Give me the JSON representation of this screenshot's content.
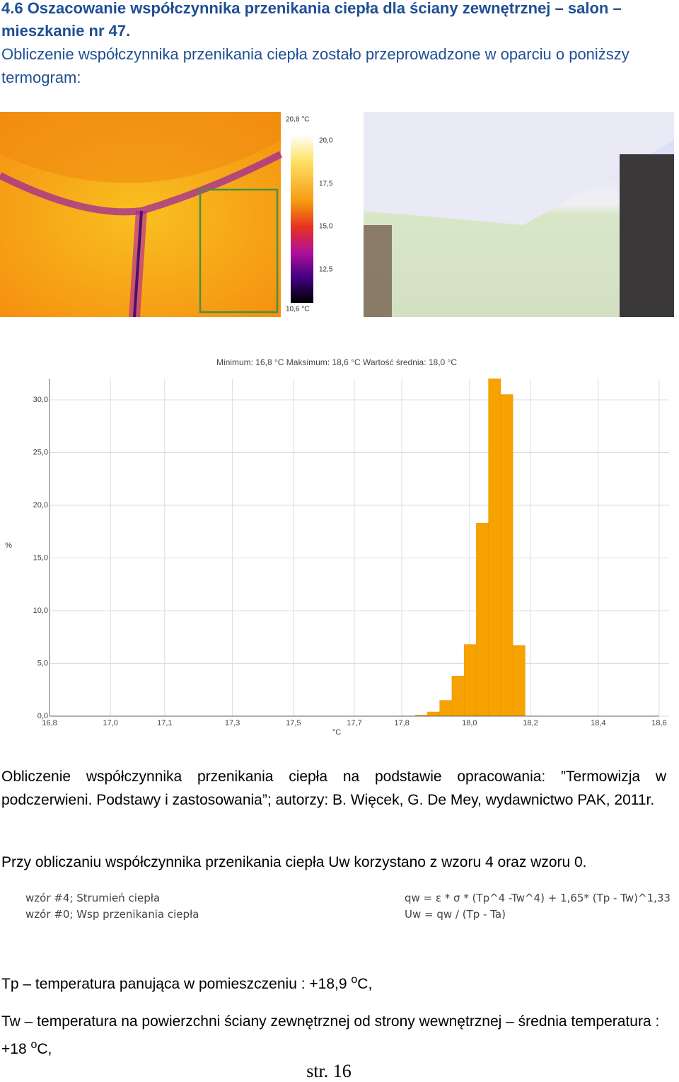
{
  "header": {
    "title": "4.6 Oszacowanie współczynnika przenikania ciepła dla ściany zewnętrznej – salon – mieszkanie nr 47."
  },
  "intro": "Obliczenie współczynnika przenikania ciepła zostało przeprowadzone w oparciu o poniższy termogram:",
  "thermogram": {
    "scale_labels": [
      "20,8 °C",
      "20,0",
      "17,5",
      "15,0",
      "12,5",
      "10,6 °C"
    ]
  },
  "chart_data": {
    "type": "histogram",
    "title": "Minimum: 16,8 °C Maksimum: 18,6 °C Wartość średnia: 18,0 °C",
    "x_label": "°C",
    "y_label": "%",
    "bins": [
      17.88,
      17.916,
      17.952,
      17.988,
      18.024,
      18.06,
      18.096,
      18.132,
      18.168,
      18.204
    ],
    "values": [
      0.1,
      0.4,
      1.5,
      3.8,
      6.8,
      18.3,
      32.0,
      30.5,
      6.7
    ],
    "color": "#f6a200",
    "xlim": [
      16.8,
      18.6
    ],
    "ylim": [
      0,
      32
    ],
    "xticks": [
      {
        "value": 16.8,
        "label": "16,8"
      },
      {
        "value": 16.98,
        "label": "17,0"
      },
      {
        "value": 17.14,
        "label": "17,1"
      },
      {
        "value": 17.34,
        "label": "17,3"
      },
      {
        "value": 17.52,
        "label": "17,5"
      },
      {
        "value": 17.7,
        "label": "17,7"
      },
      {
        "value": 17.84,
        "label": "17,8"
      },
      {
        "value": 18.04,
        "label": "18,0"
      },
      {
        "value": 18.22,
        "label": "18,2"
      },
      {
        "value": 18.42,
        "label": "18,4"
      },
      {
        "value": 18.6,
        "label": "18,6"
      }
    ],
    "yticks": [
      {
        "value": 0,
        "label": "0,0"
      },
      {
        "value": 5,
        "label": "5,0"
      },
      {
        "value": 10,
        "label": "10,0"
      },
      {
        "value": 15,
        "label": "15,0"
      },
      {
        "value": 20,
        "label": "20,0"
      },
      {
        "value": 25,
        "label": "25,0"
      },
      {
        "value": 30,
        "label": "30,0"
      }
    ],
    "grid": true
  },
  "paragraphs": [
    "Obliczenie współczynnika przenikania ciepła na podstawie opracowania: ”Termowizja w podczerwieni. Podstawy i zastosowania”; autorzy: B. Więcek, G. De Mey, wydawnictwo PAK, 2011r.",
    "Przy obliczaniu współczynnika przenikania ciepła Uw korzystano z wzoru 4 oraz wzoru  0."
  ],
  "formulas": {
    "labels": [
      "wzór #4; Strumień ciepła",
      "wzór #0; Wsp przenikania ciepła"
    ],
    "equations": [
      "qw = ε * σ * (Tp^4 -Tw^4) + 1,65* (Tp - Tw)^1,33",
      "Uw = qw / (Tp - Ta)"
    ]
  },
  "definitions": [
    {
      "text": "Tp – temperatura panująca w pomieszczeniu : +18,9 ",
      "sup": "o",
      "unit": "C,"
    },
    {
      "text": "Tw – temperatura na powierzchni ściany zewnętrznej od strony wewnętrznej – średnia temperatura : +18 ",
      "sup": "o",
      "unit": "C,"
    }
  ],
  "footer": {
    "page": "str. 16"
  }
}
